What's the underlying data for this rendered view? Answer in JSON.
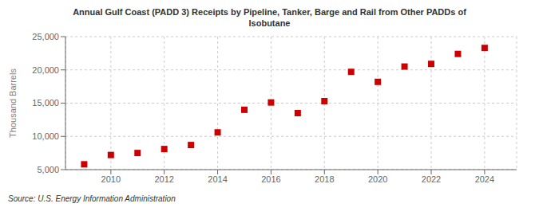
{
  "chart_data": {
    "type": "scatter",
    "title": "Annual Gulf Coast (PADD 3) Receipts by Pipeline, Tanker, Barge and Rail from Other PADDs of\nIsobutane",
    "ylabel": "Thousand Barrels",
    "source": "Source: U.S. Energy Information Administration",
    "x": [
      2009,
      2010,
      2011,
      2012,
      2013,
      2014,
      2015,
      2016,
      2017,
      2018,
      2019,
      2020,
      2021,
      2022,
      2023,
      2024
    ],
    "values": [
      5800,
      7200,
      7500,
      8100,
      8700,
      10600,
      14000,
      15100,
      13500,
      15300,
      19700,
      18200,
      20500,
      20900,
      22400,
      23300
    ],
    "color": "#cc0000",
    "marker": "square",
    "xlim": [
      2008.3,
      2025.2
    ],
    "xticks": [
      2010,
      2012,
      2014,
      2016,
      2018,
      2020,
      2022,
      2024
    ],
    "ylim": [
      5000,
      25000
    ],
    "yticks": [
      {
        "value": 5000,
        "label": "5,000"
      },
      {
        "value": 10000,
        "label": "10,000"
      },
      {
        "value": 15000,
        "label": "15,000"
      },
      {
        "value": 20000,
        "label": "20,000"
      },
      {
        "value": 25000,
        "label": "25,000"
      }
    ],
    "grid": true
  }
}
